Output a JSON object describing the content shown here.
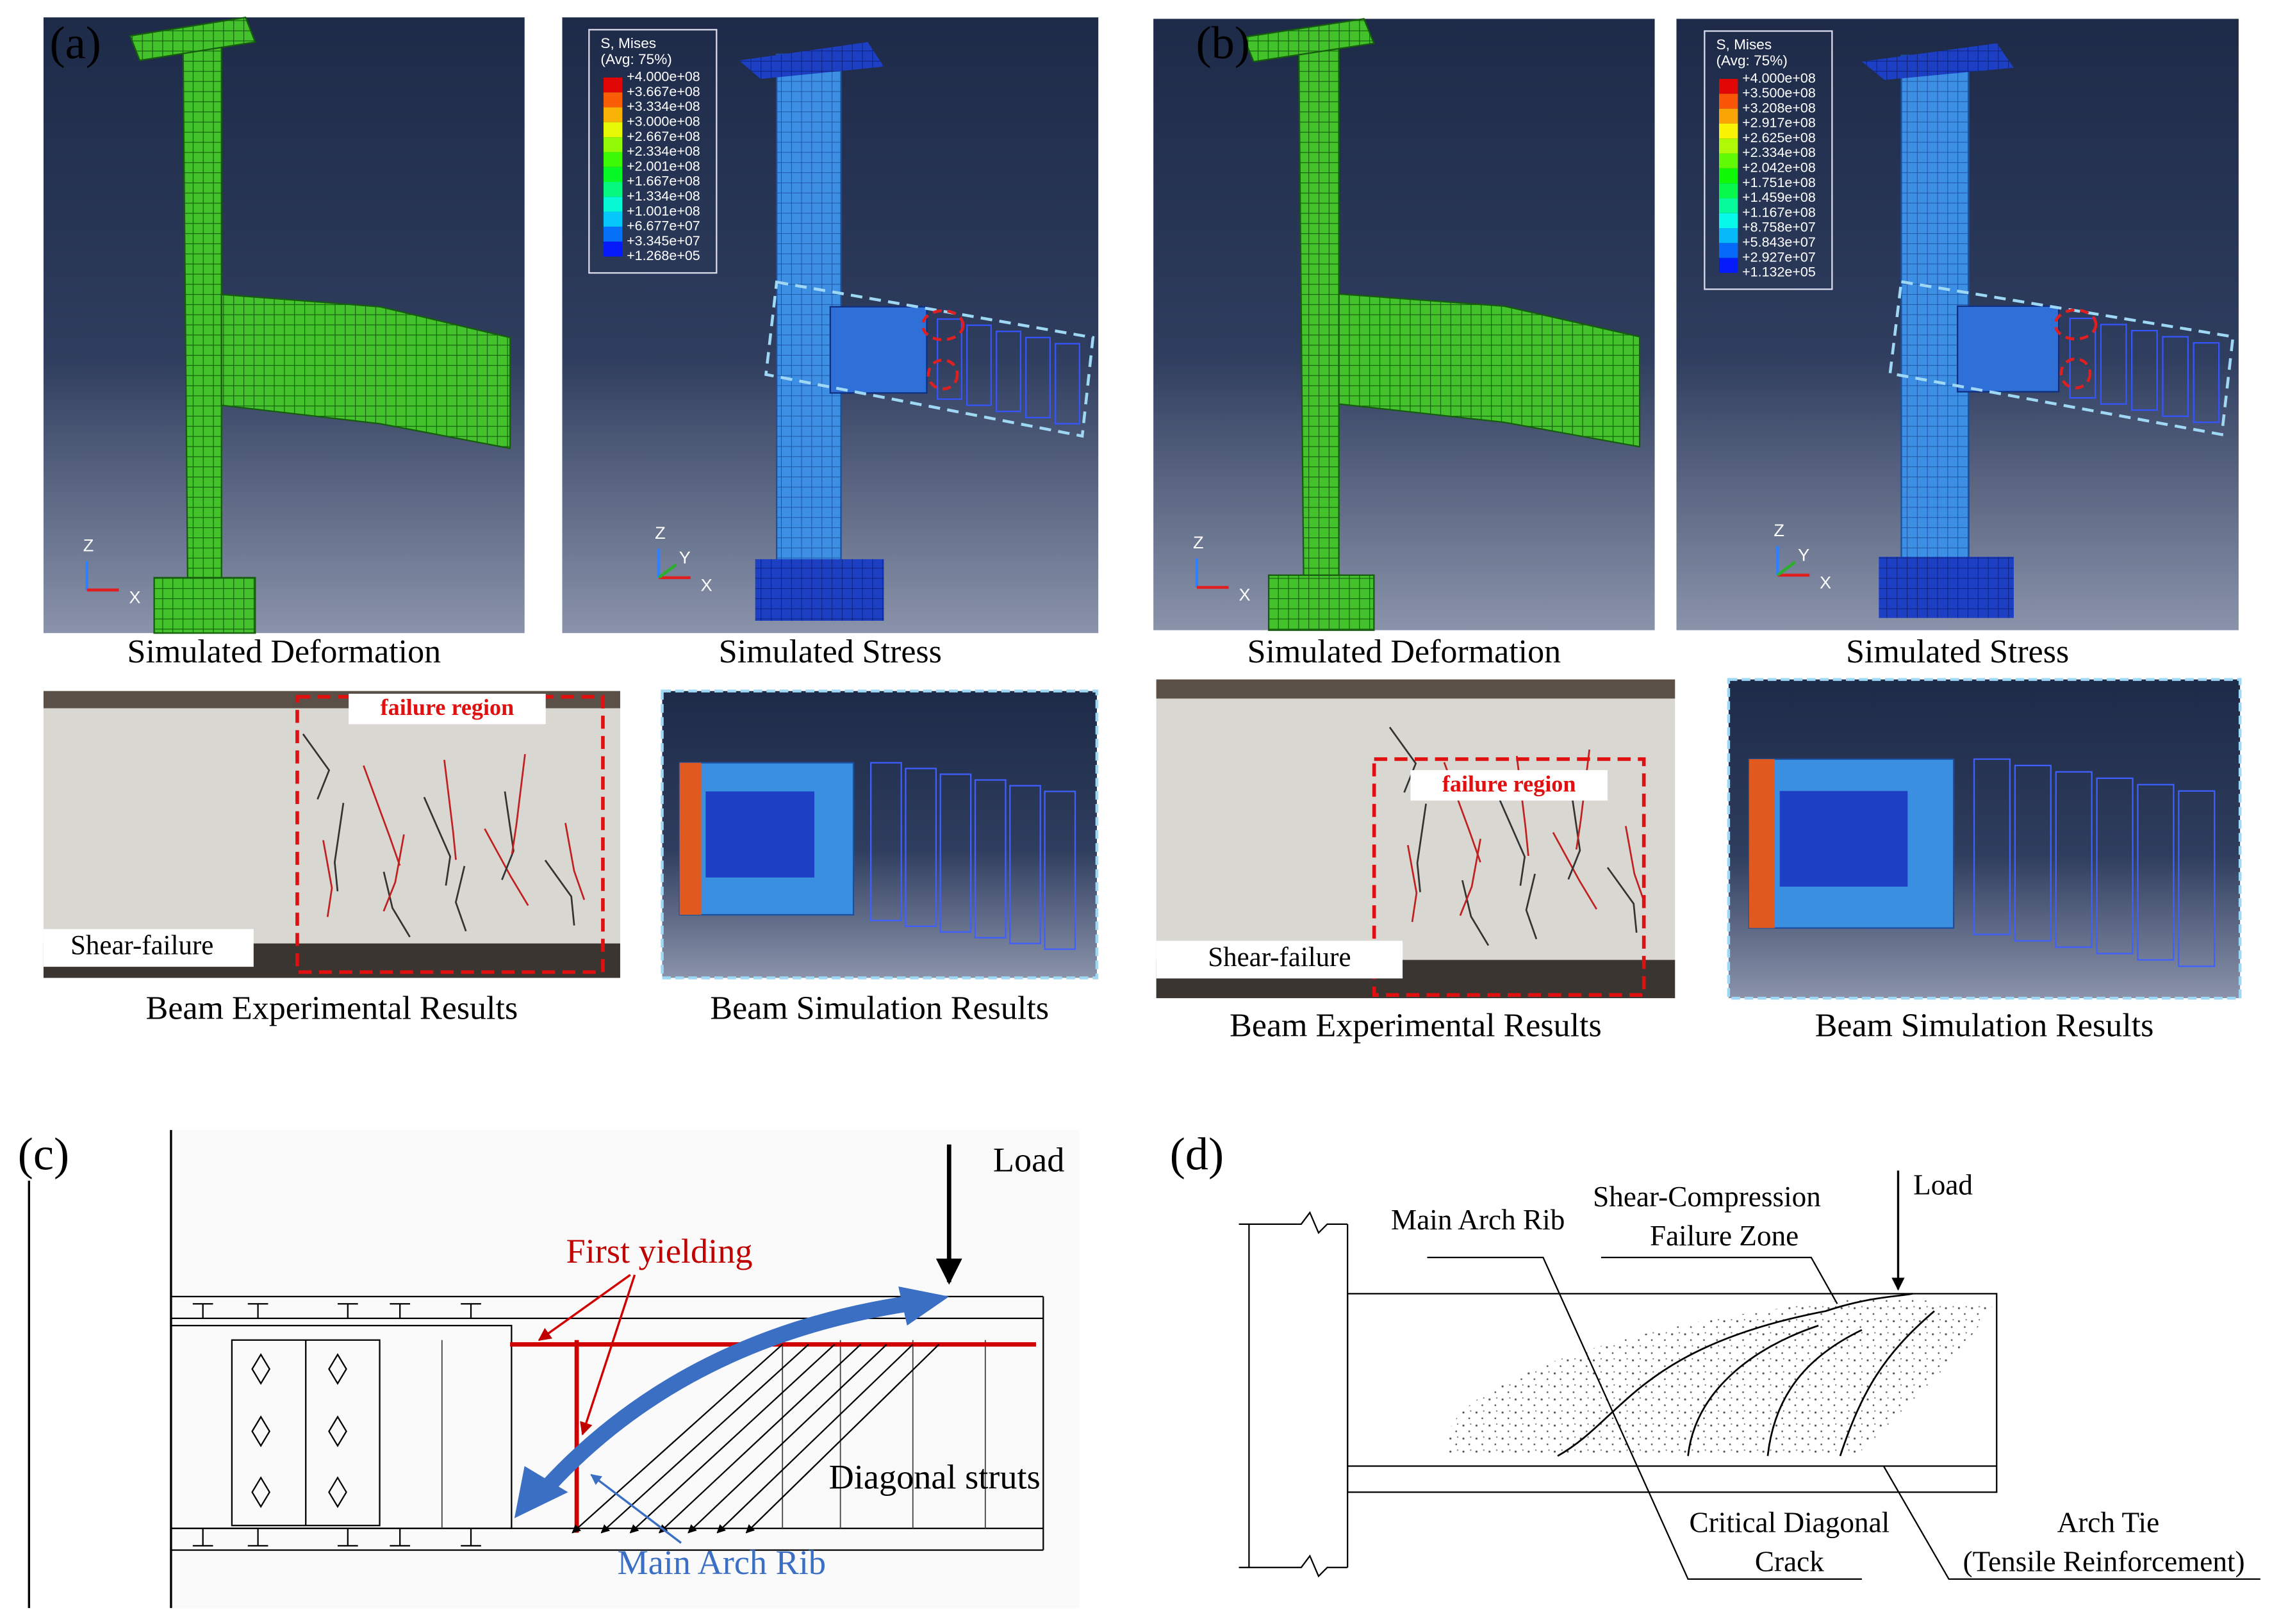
{
  "panels": [
    {
      "label": "(a)",
      "deformation": {
        "caption": "Simulated Deformation",
        "axes": [
          "Z",
          "X"
        ]
      },
      "stress": {
        "caption": "Simulated Stress",
        "legend_title": "S, Mises",
        "legend_subtitle": "(Avg: 75%)",
        "legend_values": [
          "+4.000e+08",
          "+3.667e+08",
          "+3.334e+08",
          "+3.000e+08",
          "+2.667e+08",
          "+2.334e+08",
          "+2.001e+08",
          "+1.667e+08",
          "+1.334e+08",
          "+1.001e+08",
          "+6.677e+07",
          "+3.345e+07",
          "+1.268e+05"
        ],
        "axes": [
          "Z",
          "Y",
          "X"
        ]
      },
      "experiment": {
        "caption": "Beam Experimental Results",
        "region_label": "failure region",
        "failure_mode": "Shear-failure"
      },
      "simulation": {
        "caption": "Beam Simulation Results"
      }
    },
    {
      "label": "(b)",
      "deformation": {
        "caption": "Simulated Deformation",
        "axes": [
          "Z",
          "X"
        ]
      },
      "stress": {
        "caption": "Simulated Stress",
        "legend_title": "S, Mises",
        "legend_subtitle": "(Avg: 75%)",
        "legend_values": [
          "+4.000e+08",
          "+3.500e+08",
          "+3.208e+08",
          "+2.917e+08",
          "+2.625e+08",
          "+2.334e+08",
          "+2.042e+08",
          "+1.751e+08",
          "+1.459e+08",
          "+1.167e+08",
          "+8.758e+07",
          "+5.843e+07",
          "+2.927e+07",
          "+1.132e+05"
        ],
        "axes": [
          "Z",
          "Y",
          "X"
        ]
      },
      "experiment": {
        "caption": "Beam Experimental Results",
        "region_label": "failure region",
        "failure_mode": "Shear-failure"
      },
      "simulation": {
        "caption": "Beam Simulation Results"
      }
    },
    {
      "label": "(c)",
      "load": "Load",
      "first_yielding": "First yielding",
      "struts": "Diagonal struts",
      "arch_rib": "Main Arch Rib"
    },
    {
      "label": "(d)",
      "arch_rib": "Main Arch Rib",
      "zone": [
        "Shear-Compression",
        "Failure Zone"
      ],
      "load": "Load",
      "crack": [
        "Critical Diagonal",
        "Crack"
      ],
      "tie": [
        "Arch Tie",
        "(Tensile Reinforcement)"
      ]
    }
  ]
}
